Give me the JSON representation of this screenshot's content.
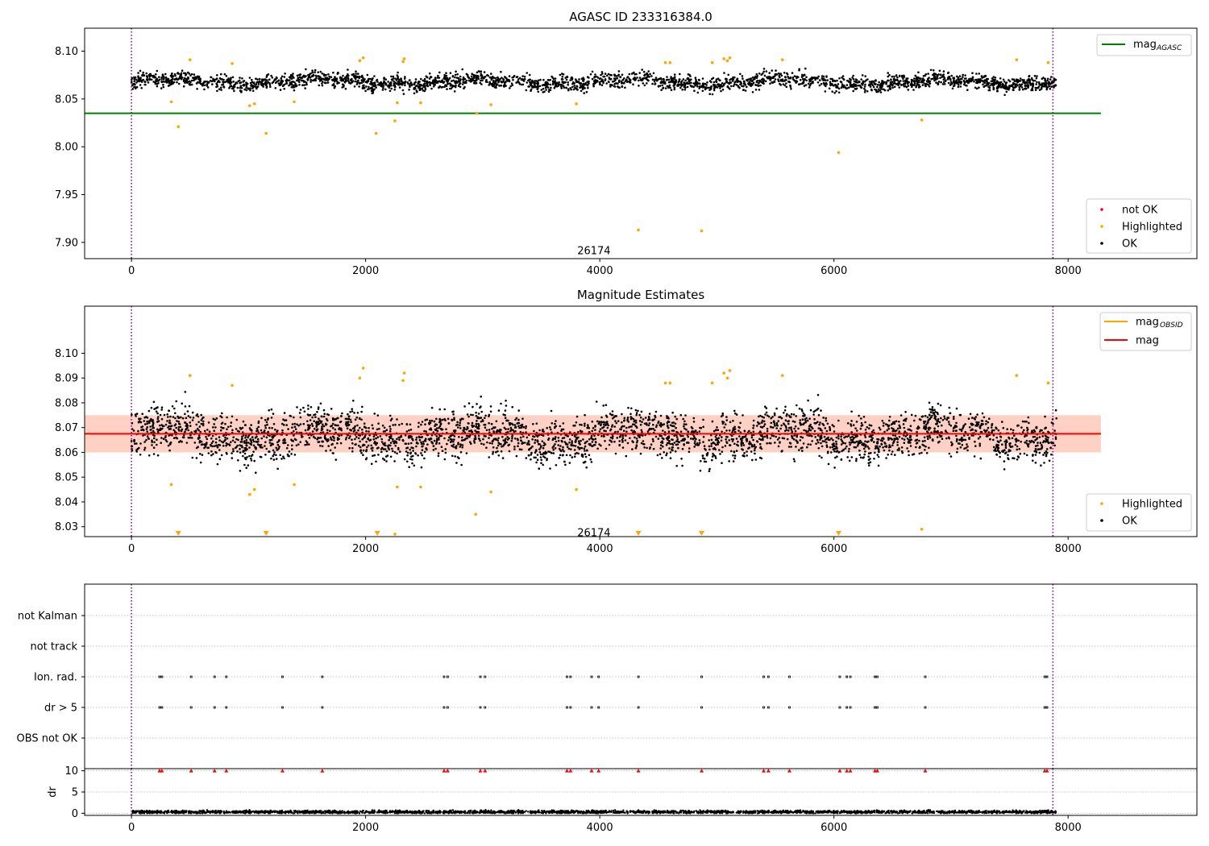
{
  "colors": {
    "ok": "#000000",
    "highlighted": "#ffa500",
    "not_ok": "#ff0000",
    "mag_agasc_line": "#008000",
    "mag_line": "#ff0000",
    "mag_obsid_line": "#ffa500",
    "band_fill": "#ffc2b0",
    "obs_divider": "#800080",
    "grid": "#b0b0b0"
  },
  "chart_data": [
    {
      "type": "scatter",
      "title": "AGASC ID 233316384.0",
      "xlabel": "",
      "ylabel": "",
      "xlim": [
        -400,
        9100
      ],
      "ylim": [
        7.883,
        8.124
      ],
      "xticks": [
        0,
        2000,
        4000,
        6000,
        8000
      ],
      "yticks": [
        7.9,
        7.95,
        8.0,
        8.05,
        8.1
      ],
      "ytick_labels": [
        "7.90",
        "7.95",
        "8.00",
        "8.05",
        "8.10"
      ],
      "grid": false,
      "annotation": {
        "text": "26174",
        "x": 3950,
        "y": 7.891
      },
      "obs_dividers": [
        0,
        7870
      ],
      "ok_band": {
        "center": 8.068,
        "spread": 0.0055,
        "x_start": 0,
        "x_end": 7900,
        "count": 2800
      },
      "lines": [
        {
          "name": "mag",
          "name_sub": "AGASC",
          "y": 8.035,
          "x_range": [
            -400,
            8280
          ],
          "color": "#008000"
        }
      ],
      "series": [
        {
          "name": "Highlighted",
          "color": "#ffa500",
          "points": [
            [
              340,
              8.047
            ],
            [
              400,
              8.021
            ],
            [
              500,
              8.091
            ],
            [
              860,
              8.087
            ],
            [
              1010,
              8.043
            ],
            [
              1050,
              8.045
            ],
            [
              1150,
              8.014
            ],
            [
              1390,
              8.047
            ],
            [
              1950,
              8.09
            ],
            [
              1980,
              8.093
            ],
            [
              2090,
              8.014
            ],
            [
              2250,
              8.027
            ],
            [
              2270,
              8.046
            ],
            [
              2320,
              8.089
            ],
            [
              2330,
              8.092
            ],
            [
              2470,
              8.046
            ],
            [
              2950,
              8.035
            ],
            [
              3070,
              8.044
            ],
            [
              3800,
              8.045
            ],
            [
              4330,
              7.913
            ],
            [
              4560,
              8.088
            ],
            [
              4600,
              8.088
            ],
            [
              4870,
              7.912
            ],
            [
              4960,
              8.088
            ],
            [
              5060,
              8.092
            ],
            [
              5090,
              8.09
            ],
            [
              5110,
              8.093
            ],
            [
              5560,
              8.091
            ],
            [
              6040,
              7.994
            ],
            [
              6750,
              8.028
            ],
            [
              7560,
              8.091
            ],
            [
              7830,
              8.088
            ]
          ]
        },
        {
          "name": "not OK",
          "color": "#ff0000",
          "points": []
        },
        {
          "name": "OK",
          "color": "#000000",
          "points": []
        }
      ],
      "legend_upper": [
        {
          "label": "mag",
          "sub": "AGASC",
          "color": "#008000"
        }
      ],
      "legend_lower": [
        {
          "label": "not OK",
          "color": "#ff0000"
        },
        {
          "label": "Highlighted",
          "color": "#ffa500"
        },
        {
          "label": "OK",
          "color": "#000000"
        }
      ]
    },
    {
      "type": "scatter",
      "title": "Magnitude Estimates",
      "xlabel": "",
      "ylabel": "",
      "xlim": [
        -400,
        9100
      ],
      "ylim": [
        8.026,
        8.119
      ],
      "xticks": [
        0,
        2000,
        4000,
        6000,
        8000
      ],
      "yticks": [
        8.03,
        8.04,
        8.05,
        8.06,
        8.07,
        8.08,
        8.09,
        8.1
      ],
      "ytick_labels": [
        "8.03",
        "8.04",
        "8.05",
        "8.06",
        "8.07",
        "8.08",
        "8.09",
        "8.10"
      ],
      "grid": false,
      "annotation": {
        "text": "26174",
        "x": 3950,
        "y": 8.0275
      },
      "obs_dividers": [
        0,
        7870
      ],
      "ok_band": {
        "center": 8.067,
        "spread": 0.0065,
        "x_start": 0,
        "x_end": 7900,
        "count": 3400
      },
      "band": {
        "y_low": 8.06,
        "y_high": 8.075,
        "x_range": [
          -400,
          8280
        ]
      },
      "lines": [
        {
          "name": "mag",
          "y": 8.0675,
          "x_range": [
            -400,
            8280
          ],
          "color": "#ff0000"
        }
      ],
      "below_range_markers": [
        400,
        1150,
        2100,
        4330,
        4870,
        6040
      ],
      "series": [
        {
          "name": "Highlighted",
          "color": "#ffa500",
          "points": [
            [
              340,
              8.047
            ],
            [
              500,
              8.091
            ],
            [
              860,
              8.087
            ],
            [
              1010,
              8.043
            ],
            [
              1050,
              8.045
            ],
            [
              1390,
              8.047
            ],
            [
              1950,
              8.09
            ],
            [
              1980,
              8.094
            ],
            [
              2250,
              8.027
            ],
            [
              2270,
              8.046
            ],
            [
              2320,
              8.089
            ],
            [
              2330,
              8.092
            ],
            [
              2470,
              8.046
            ],
            [
              2940,
              8.035
            ],
            [
              3070,
              8.044
            ],
            [
              3800,
              8.045
            ],
            [
              4560,
              8.088
            ],
            [
              4600,
              8.088
            ],
            [
              4960,
              8.088
            ],
            [
              5060,
              8.092
            ],
            [
              5090,
              8.09
            ],
            [
              5110,
              8.093
            ],
            [
              5560,
              8.091
            ],
            [
              6750,
              8.029
            ],
            [
              7560,
              8.091
            ],
            [
              7830,
              8.088
            ]
          ]
        },
        {
          "name": "OK",
          "color": "#000000",
          "points": []
        }
      ],
      "legend_upper": [
        {
          "label": "mag",
          "sub": "OBSID",
          "color": "#ffa500"
        },
        {
          "label": "mag",
          "sub": "",
          "color": "#ff0000"
        }
      ],
      "legend_lower": [
        {
          "label": "Highlighted",
          "color": "#ffa500"
        },
        {
          "label": "OK",
          "color": "#000000"
        }
      ]
    },
    {
      "type": "scatter",
      "title": "",
      "xlabel": "",
      "ylabel": "",
      "xlim": [
        -400,
        9100
      ],
      "categories": [
        "not Kalman",
        "not track",
        "Ion. rad.",
        "dr > 5",
        "OBS not OK"
      ],
      "grid": true,
      "obs_dividers": [
        0,
        7870
      ],
      "flag_times": [
        240,
        260,
        510,
        710,
        810,
        1290,
        1630,
        2670,
        2700,
        2980,
        3020,
        3720,
        3750,
        3930,
        3990,
        4330,
        4870,
        5400,
        5440,
        5620,
        6050,
        6110,
        6140,
        6350,
        6370,
        6780,
        7800,
        7820
      ],
      "series": [
        {
          "name": "not Kalman",
          "points": []
        },
        {
          "name": "not track",
          "points": []
        },
        {
          "name": "Ion. rad.",
          "points": "flag_times"
        },
        {
          "name": "dr > 5",
          "points": "flag_times"
        },
        {
          "name": "OBS not OK",
          "points": []
        }
      ]
    },
    {
      "type": "scatter",
      "title": "",
      "xlabel": "",
      "ylabel": "dr",
      "xlim": [
        -400,
        9100
      ],
      "ylim": [
        -0.5,
        10.5
      ],
      "yticks": [
        0,
        5,
        10
      ],
      "ytick_labels": [
        "0",
        "5",
        "10"
      ],
      "xticks": [
        0,
        2000,
        4000,
        6000,
        8000
      ],
      "grid": true,
      "obs_dividers": [
        0,
        7870
      ],
      "dr_baseline": {
        "center": 0.3,
        "spread": 0.25,
        "x_start": 0,
        "x_end": 7900,
        "count": 2600
      },
      "clipped_markers": {
        "y": 10,
        "color": "#ff0000",
        "times": "flag_times"
      }
    }
  ]
}
